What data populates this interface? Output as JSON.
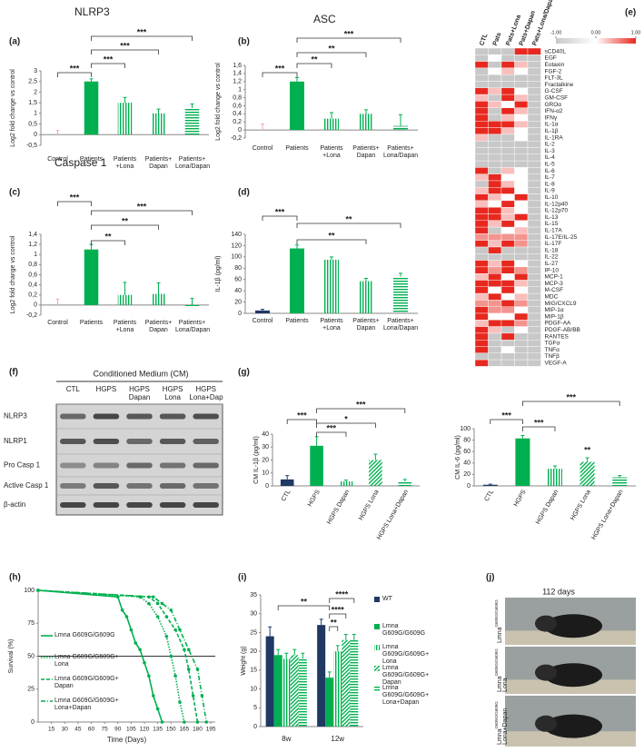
{
  "chart_data": [
    {
      "type": "bar",
      "label": "(a)",
      "title": "NLRP3",
      "y_label": "Log2 fold change vs control",
      "categories": [
        "Control",
        "Patients",
        "Patients +Lona",
        "Patients+ Dapan",
        "Patients+ Lona/Dapan"
      ],
      "values": [
        0,
        2.5,
        1.5,
        1.0,
        1.25
      ],
      "errors": [
        0.2,
        0.12,
        0.25,
        0.2,
        0.2
      ],
      "colors": [
        "#f4a6b4",
        "#00b050",
        "#00b050",
        "#00b050",
        "#00b050"
      ],
      "patterns": [
        "solid",
        "solid",
        "vertical",
        "vertical",
        "horizontal"
      ],
      "ylim": [
        -0.5,
        3
      ],
      "yticks": [
        {
          "value": -0.5,
          "label": "-0,5"
        },
        0,
        {
          "value": 0.5,
          "label": "0,5"
        },
        1,
        {
          "value": 1.5,
          "label": "1,5"
        },
        2,
        {
          "value": 2.5,
          "label": "2,5"
        },
        3
      ],
      "annotations": [
        "***",
        "***",
        "***",
        "***"
      ]
    },
    {
      "type": "bar",
      "label": "(b)",
      "title": "ASC",
      "y_label": "Log2 fold change vs control",
      "categories": [
        "Control",
        "Patients",
        "Patients +Lona",
        "Patients+ Dapan",
        "Patients+ Lona/Dapan"
      ],
      "values": [
        0,
        1.2,
        0.28,
        0.4,
        0.1
      ],
      "errors": [
        0.15,
        0.1,
        0.15,
        0.1,
        0.28
      ],
      "colors": [
        "#f4a6b4",
        "#00b050",
        "#00b050",
        "#00b050",
        "#00b050"
      ],
      "patterns": [
        "solid",
        "solid",
        "vertical",
        "vertical",
        "horizontal"
      ],
      "ylim": [
        -0.2,
        1.6
      ],
      "yticks": [
        {
          "value": -0.2,
          "label": "-0,2"
        },
        0,
        {
          "value": 0.2,
          "label": "0,2"
        },
        {
          "value": 0.4,
          "label": "0,4"
        },
        {
          "value": 0.6,
          "label": "0,6"
        },
        {
          "value": 0.8,
          "label": "0,8"
        },
        1,
        {
          "value": 1.2,
          "label": "1,2"
        },
        {
          "value": 1.4,
          "label": "1,4"
        },
        {
          "value": 1.6,
          "label": "1,6"
        }
      ],
      "annotations": [
        "***",
        "**",
        "**",
        "***"
      ]
    },
    {
      "type": "bar",
      "label": "(c)",
      "title": "Caspase 1",
      "y_label": "Log2 fold change vs control",
      "categories": [
        "Control",
        "Patients",
        "Patients +Lona",
        "Patients+ Dapan",
        "Patients+ Lona/Dapan"
      ],
      "values": [
        0,
        1.1,
        0.2,
        0.22,
        -0.02
      ],
      "errors": [
        0.12,
        0.1,
        0.25,
        0.22,
        0.15
      ],
      "colors": [
        "#f4a6b4",
        "#00b050",
        "#00b050",
        "#00b050",
        "#00b050"
      ],
      "patterns": [
        "solid",
        "solid",
        "vertical",
        "vertical",
        "horizontal"
      ],
      "ylim": [
        -0.2,
        1.4
      ],
      "yticks": [
        {
          "value": -0.2,
          "label": "-0,2"
        },
        0,
        {
          "value": 0.2,
          "label": "0,2"
        },
        {
          "value": 0.4,
          "label": "0,4"
        },
        {
          "value": 0.6,
          "label": "0,6"
        },
        {
          "value": 0.8,
          "label": "0,8"
        },
        1,
        {
          "value": 1.2,
          "label": "1,2"
        },
        {
          "value": 1.4,
          "label": "1,4"
        }
      ],
      "annotations": [
        "***",
        "**",
        "**",
        "***"
      ]
    },
    {
      "type": "bar",
      "label": "(d)",
      "y_label": "IL-1β (pg/ml)",
      "categories": [
        "Control",
        "Patients",
        "Patients +Lona",
        "Patients+ Dapan",
        "Patients+ Lona/Dapan"
      ],
      "values": [
        5,
        115,
        95,
        57,
        65
      ],
      "errors": [
        2,
        6,
        5,
        5,
        6
      ],
      "colors": [
        "#1f3864",
        "#00b050",
        "#00b050",
        "#00b050",
        "#00b050"
      ],
      "patterns": [
        "solid",
        "solid",
        "vertical",
        "vertical",
        "horizontal"
      ],
      "ylim": [
        0,
        140
      ],
      "yticks": [
        0,
        20,
        40,
        60,
        80,
        100,
        120,
        140
      ],
      "annotations": [
        "***",
        "**",
        "**"
      ]
    },
    {
      "type": "heatmap",
      "label": "(e)",
      "columns": [
        "CTL",
        "Pats",
        "Pats+Lona",
        "Pats+Dapan",
        "Pats+Lona/Dapan"
      ],
      "rows": [
        "sCD40L",
        "EGF",
        "Eotaxin",
        "FGF-2",
        "FLT-3L",
        "Fractalkine",
        "G-CSF",
        "GM-CSF",
        "GROα",
        "IFN-α2",
        "IFNγ",
        "IL-1α",
        "IL-1β",
        "IL-1RA",
        "IL-2",
        "IL-3",
        "IL-4",
        "IL-5",
        "IL-6",
        "IL-7",
        "IL-8",
        "IL-9",
        "IL-10",
        "IL-12p40",
        "IL-12p70",
        "IL-13",
        "IL-15",
        "IL-17A",
        "IL-17E/IL-25",
        "IL-17F",
        "IL-18",
        "IL-22",
        "IL-27",
        "IP-10",
        "MCP-1",
        "MCP-3",
        "M-CSF",
        "MDC",
        "MIG/CXCL9",
        "MIP-1α",
        "MIP-1β",
        "PDGF-AA",
        "PDGF-AB/BB",
        "RANTES",
        "TGFα",
        "TNFα",
        "TNFβ",
        "VEGF-A"
      ],
      "values": [
        [
          -1,
          -1,
          -1,
          1,
          1
        ],
        [
          -1,
          0,
          -1,
          -1,
          -1
        ],
        [
          1,
          -1,
          1,
          0.3,
          -1
        ],
        [
          -1,
          0,
          0.3,
          0,
          -1
        ],
        [
          -1,
          -1,
          -1,
          -1,
          -1
        ],
        [
          -1,
          -1,
          -1,
          -1,
          -1
        ],
        [
          1,
          0.3,
          1,
          0,
          -1
        ],
        [
          0.3,
          -1,
          1,
          0.3,
          -1
        ],
        [
          1,
          0.3,
          0,
          1,
          -1
        ],
        [
          1,
          -1,
          1,
          0.3,
          -1
        ],
        [
          1,
          -1,
          0.3,
          0,
          -1
        ],
        [
          1,
          1,
          1,
          0.3,
          -1
        ],
        [
          1,
          1,
          0.3,
          0,
          -1
        ],
        [
          0.3,
          -1,
          -1,
          0,
          -1
        ],
        [
          -1,
          -1,
          -1,
          -1,
          -1
        ],
        [
          -1,
          -1,
          -1,
          -1,
          -1
        ],
        [
          -1,
          -1,
          -1,
          -1,
          -1
        ],
        [
          -1,
          -1,
          -1,
          -1,
          -1
        ],
        [
          1,
          -1,
          0.3,
          0,
          -1
        ],
        [
          0.3,
          1,
          0,
          0,
          -1
        ],
        [
          -1,
          1,
          0.3,
          0,
          -1
        ],
        [
          0.3,
          1,
          1,
          0,
          -1
        ],
        [
          1,
          0.3,
          0,
          1,
          -1
        ],
        [
          0.3,
          0,
          1,
          0,
          -1
        ],
        [
          1,
          1,
          0.3,
          0,
          -1
        ],
        [
          1,
          1,
          0.3,
          1,
          -1
        ],
        [
          1,
          0.3,
          1,
          0,
          -1
        ],
        [
          1,
          -1,
          0,
          0.3,
          -1
        ],
        [
          0.5,
          0.5,
          0.5,
          0.5,
          -1
        ],
        [
          1,
          0.3,
          1,
          0.5,
          -1
        ],
        [
          -1,
          1,
          -1,
          -1,
          -1
        ],
        [
          -1,
          -1,
          -1,
          -1,
          -1
        ],
        [
          1,
          0.3,
          1,
          0,
          -1
        ],
        [
          1,
          0.5,
          1,
          0.5,
          -1
        ],
        [
          0.3,
          1,
          0,
          1,
          -1
        ],
        [
          1,
          1,
          1,
          0.3,
          -1
        ],
        [
          1,
          0,
          1,
          0,
          -1
        ],
        [
          0.3,
          1,
          0,
          0.3,
          -1
        ],
        [
          0.5,
          0.5,
          1,
          0.5,
          -1
        ],
        [
          1,
          0.5,
          0.5,
          0,
          -1
        ],
        [
          1,
          0,
          0,
          1,
          -1
        ],
        [
          0.3,
          1,
          1,
          0.5,
          -1
        ],
        [
          1,
          0.3,
          -1,
          0,
          -1
        ],
        [
          1,
          -1,
          1,
          -1,
          -1
        ],
        [
          1,
          -1,
          -1,
          -1,
          -1
        ],
        [
          1,
          -1,
          0,
          -1,
          -1
        ],
        [
          -1,
          -1,
          -1,
          -1,
          -1
        ],
        [
          1,
          -1,
          -1,
          -1,
          -1
        ]
      ],
      "zlim": [
        -1,
        1
      ],
      "colors": [
        "#c8c8c8",
        "#ffffff",
        "#e8281e"
      ],
      "zticks": [
        {
          "value": -1,
          "label": "-1.00"
        },
        {
          "value": 0,
          "label": "0.00"
        },
        {
          "value": 1,
          "label": "1.00"
        }
      ]
    },
    {
      "type": "bar",
      "label": "(g)",
      "y_label": "CM IL-1β (pg/ml)",
      "categories": [
        "CTL",
        "HGPS",
        "HGPS Dapan",
        "HGPS Lona",
        "HGPS Lona+Dapan"
      ],
      "values": [
        5,
        31,
        3.5,
        20,
        3.5
      ],
      "errors": [
        3,
        7,
        1,
        4.5,
        1.5
      ],
      "colors": [
        "#1f3864",
        "#00b050",
        "#00b050",
        "#00b050",
        "#00b050"
      ],
      "patterns": [
        "solid",
        "solid",
        "vertical",
        "diagonal",
        "horizontal"
      ],
      "ylim": [
        0,
        40
      ],
      "yticks": [
        0,
        10,
        20,
        30,
        40
      ],
      "annotations": [
        "***",
        "***",
        "*",
        "***"
      ]
    },
    {
      "type": "bar",
      "y_label": "CM IL-6 (pg/ml)",
      "categories": [
        "CTL",
        "HGPS",
        "HGPS Dapan",
        "HGPS Lona",
        "HGPS Lona+Dapan"
      ],
      "values": [
        2,
        83,
        30,
        42,
        15
      ],
      "errors": [
        1,
        5,
        5,
        7,
        3
      ],
      "colors": [
        "#1f3864",
        "#00b050",
        "#00b050",
        "#00b050",
        "#00b050"
      ],
      "patterns": [
        "solid",
        "solid",
        "vertical",
        "diagonal",
        "horizontal"
      ],
      "ylim": [
        0,
        100
      ],
      "yticks": [
        0,
        20,
        40,
        60,
        80,
        100
      ],
      "annotations": [
        "***",
        "***",
        "***",
        "**"
      ]
    },
    {
      "type": "survival",
      "label": "(h)",
      "x_label": "Time (Days)",
      "y_label": "Survival (%)",
      "xlim": [
        0,
        200
      ],
      "xticks": [
        15,
        30,
        45,
        60,
        75,
        90,
        105,
        120,
        135,
        150,
        165,
        180,
        195
      ],
      "ylim": [
        0,
        100
      ],
      "yticks": [
        0,
        25,
        50,
        75,
        100
      ],
      "hline": 50,
      "series": [
        {
          "name": "Lmna G609G/G609G",
          "color": "#00b050",
          "dash": "solid",
          "x": [
            0,
            90,
            95,
            100,
            105,
            110,
            115,
            120,
            125,
            130,
            135,
            140
          ],
          "values": [
            100,
            95,
            85,
            80,
            70,
            60,
            55,
            45,
            35,
            20,
            10,
            0
          ]
        },
        {
          "name": "Lmna G609G/G609G+ Lona",
          "color": "#00b050",
          "dash": "dotted",
          "x": [
            0,
            115,
            125,
            135,
            145,
            150,
            155,
            160,
            165
          ],
          "values": [
            100,
            95,
            90,
            80,
            65,
            50,
            35,
            15,
            0
          ]
        },
        {
          "name": "Lmna G609G/G609G+ Dapan",
          "color": "#00b050",
          "dash": "dashed",
          "x": [
            0,
            125,
            135,
            145,
            155,
            165,
            170,
            175,
            180
          ],
          "values": [
            100,
            95,
            90,
            80,
            70,
            55,
            40,
            20,
            0
          ]
        },
        {
          "name": "Lmna G609G/G609G+ Lona+Dapan",
          "color": "#00b050",
          "dash": "dashdot",
          "x": [
            0,
            130,
            140,
            150,
            160,
            170,
            180,
            185,
            190
          ],
          "values": [
            100,
            95,
            90,
            85,
            70,
            55,
            40,
            20,
            0
          ]
        }
      ]
    },
    {
      "type": "grouped_bar",
      "label": "(i)",
      "y_label": "Weight (g)",
      "categories": [
        "8w",
        "12w"
      ],
      "ylim": [
        0,
        35
      ],
      "yticks": [
        0,
        5,
        10,
        15,
        20,
        25,
        30,
        35
      ],
      "series": [
        {
          "name": "WT",
          "color": "#1f3864",
          "pattern": "solid",
          "values": [
            24,
            27
          ],
          "errors": [
            2.5,
            1.5
          ]
        },
        {
          "name": "Lmna G609G/G609G",
          "color": "#00b050",
          "pattern": "solid",
          "values": [
            19,
            13
          ],
          "errors": [
            1.5,
            1.5
          ]
        },
        {
          "name": "Lmna G609G/G609G+ Lona",
          "color": "#00b050",
          "pattern": "vertical",
          "values": [
            18,
            20
          ],
          "errors": [
            1.5,
            1.5
          ]
        },
        {
          "name": "Lmna G609G/G609G+ Dapan",
          "color": "#00b050",
          "pattern": "diagonal",
          "values": [
            19,
            23
          ],
          "errors": [
            1.5,
            1.5
          ]
        },
        {
          "name": "Lmna G609G/G609G+ Lona+Dapan",
          "color": "#00b050",
          "pattern": "horizontal",
          "values": [
            18,
            23
          ],
          "errors": [
            1.5,
            1.5
          ]
        }
      ],
      "annotations": [
        "**",
        "****",
        "****",
        "**"
      ]
    }
  ],
  "blot": {
    "label": "(f)",
    "title": "Conditioned Medium (CM)",
    "columns": [
      "CTL",
      "HGPS",
      "HGPS Dapan",
      "HGPS Lona",
      "HGPS Lona+Dap"
    ],
    "rows": [
      "NLRP3",
      "NLRP1",
      "Pro Casp 1",
      "Active Casp 1",
      "β-actin"
    ]
  },
  "photo": {
    "label": "(j)",
    "title": "112 days",
    "labels": [
      {
        "gene": "Lmna",
        "allele": "G609G/G609G"
      },
      {
        "gene": "Lmna",
        "allele": "G609G/G609G",
        "treatment": "Lona"
      },
      {
        "gene": "Lmna",
        "allele": "G609G/G609G",
        "treatment": "Lona+Dapan"
      }
    ]
  }
}
